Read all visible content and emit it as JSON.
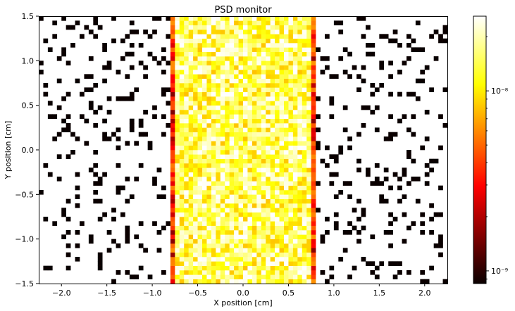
{
  "chart_data": {
    "type": "heatmap",
    "title": "PSD monitor",
    "xlabel": "X position [cm]",
    "ylabel": "Y position [cm]",
    "xlim": [
      -2.25,
      2.25
    ],
    "ylim": [
      -1.5,
      1.5
    ],
    "xticks": [
      -2.0,
      -1.5,
      -1.0,
      -0.5,
      0.0,
      0.5,
      1.0,
      1.5,
      2.0
    ],
    "xtick_labels": [
      "−2.0",
      "−1.5",
      "−1.0",
      "−0.5",
      "0.0",
      "0.5",
      "1.0",
      "1.5",
      "2.0"
    ],
    "yticks": [
      -1.5,
      -1.0,
      -0.5,
      0.0,
      0.5,
      1.0,
      1.5
    ],
    "ytick_labels": [
      "−1.5",
      "−1.0",
      "−0.5",
      "0.0",
      "0.5",
      "1.0",
      "1.5"
    ],
    "colormap": "hot",
    "color_scale": "log",
    "colorbar": {
      "range": [
        8.5e-10,
        2.6e-08
      ],
      "ticks": [
        1e-09,
        1e-08
      ],
      "tick_labels": [
        "10⁻⁹",
        "10⁻⁸"
      ]
    },
    "bins": {
      "nx": 90,
      "ny": 60
    },
    "beam_region": {
      "x": [
        -0.82,
        0.82
      ],
      "description_values": {
        "edge_intensity": 3e-09,
        "center_intensity": 1.5e-08
      }
    },
    "background": {
      "sparse_hit_value": 8.5e-10,
      "empty_value": null
    }
  }
}
